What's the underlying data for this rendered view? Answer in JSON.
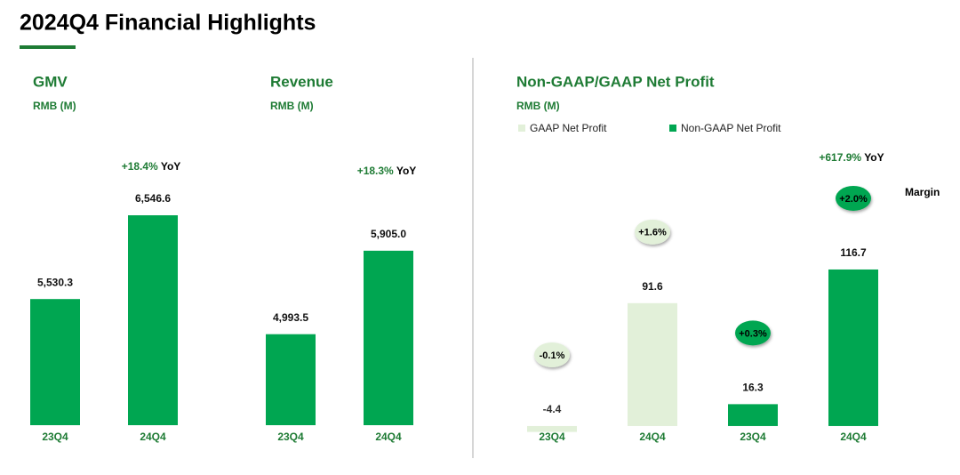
{
  "title": "2024Q4 Financial Highlights",
  "chart_data": [
    {
      "type": "bar",
      "title": "GMV",
      "subtitle": "RMB (M)",
      "categories": [
        "23Q4",
        "24Q4"
      ],
      "values": [
        5530.3,
        6546.6
      ],
      "value_labels": [
        "5,530.3",
        "6,546.6"
      ],
      "color": "#00a651",
      "ylim": [
        4000,
        7000
      ],
      "yoy": {
        "change": "+18.4%",
        "label": "YoY"
      }
    },
    {
      "type": "bar",
      "title": "Revenue",
      "subtitle": "RMB (M)",
      "categories": [
        "23Q4",
        "24Q4"
      ],
      "values": [
        4993.5,
        5905.0
      ],
      "value_labels": [
        "4,993.5",
        "5,905.0"
      ],
      "color": "#00a651",
      "ylim": [
        4000,
        6700
      ],
      "yoy": {
        "change": "+18.3%",
        "label": "YoY"
      }
    },
    {
      "type": "bar",
      "title": "Non-GAAP/GAAP Net Profit",
      "subtitle": "RMB (M)",
      "categories": [
        "23Q4",
        "24Q4",
        "23Q4",
        "24Q4"
      ],
      "series": [
        {
          "name": "GAAP Net Profit",
          "color": "#e2f0d9",
          "values": [
            -4.4,
            91.6,
            null,
            null
          ],
          "margin_labels": [
            "-0.1%",
            "+1.6%",
            null,
            null
          ]
        },
        {
          "name": "Non-GAAP Net Profit",
          "color": "#00a651",
          "values": [
            null,
            null,
            16.3,
            116.7
          ],
          "margin_labels": [
            null,
            null,
            "+0.3%",
            "+2.0%"
          ]
        }
      ],
      "ylim": [
        -5,
        180
      ],
      "yoy": {
        "change": "+617.9%",
        "label": "YoY"
      },
      "margin_title": "Margin"
    }
  ]
}
